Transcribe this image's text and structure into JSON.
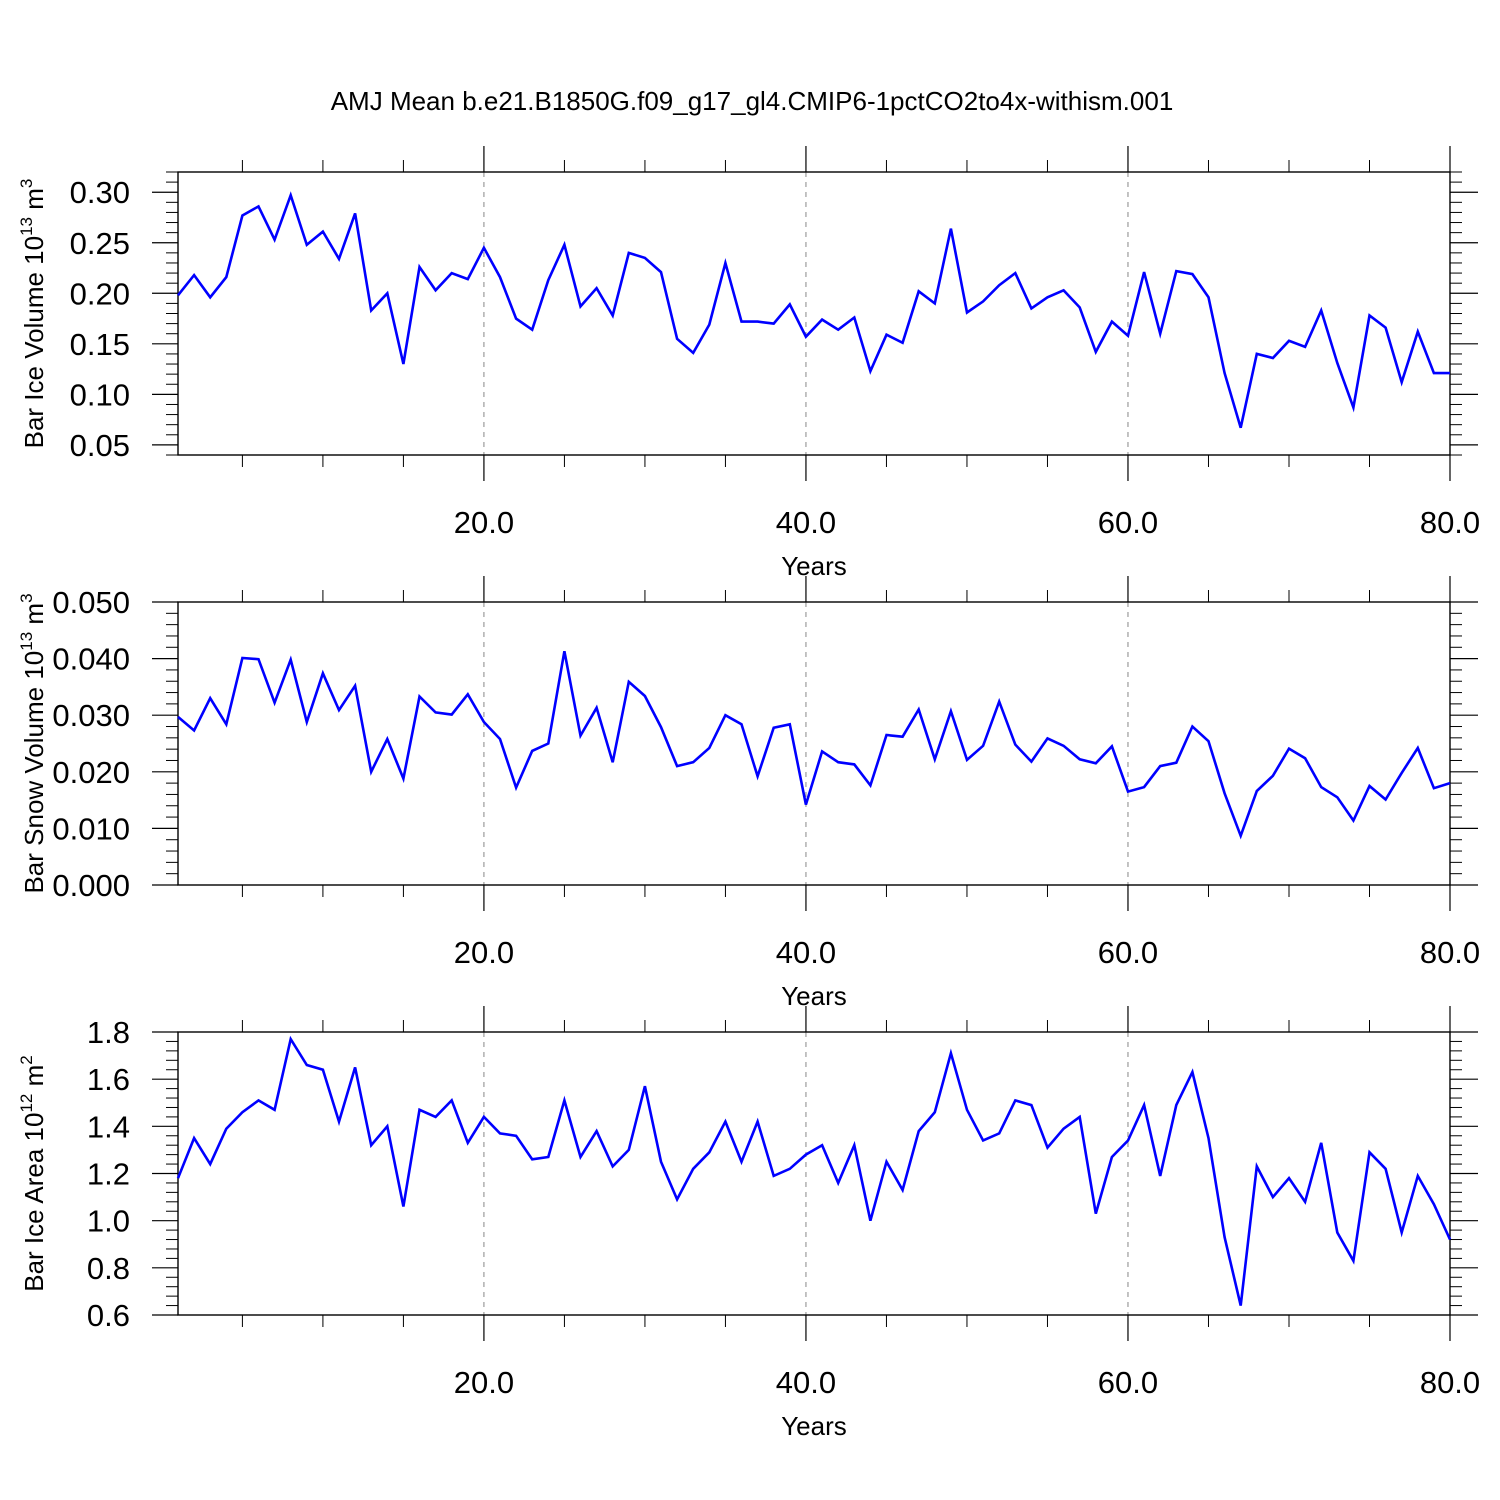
{
  "title": "AMJ Mean b.e21.B1850G.f09_g17_gl4.CMIP6-1pctCO2to4x-withism.001",
  "colors": {
    "line": "#0000ff",
    "axes": "#000000",
    "grid": "#888888",
    "background": "#ffffff"
  },
  "chart_data": [
    {
      "type": "line",
      "xlabel": "Years",
      "ylabel": {
        "main": "Bar Ice Volume 10",
        "sup": "13",
        "unit": " m",
        "unit_sup": "3"
      },
      "xlim": [
        1,
        80
      ],
      "ylim": [
        0.04,
        0.32
      ],
      "xticks": [
        20,
        40,
        60,
        80
      ],
      "xtick_labels": [
        "20.0",
        "40.0",
        "60.0",
        "80.0"
      ],
      "yticks": [
        0.05,
        0.1,
        0.15,
        0.2,
        0.25,
        0.3
      ],
      "ytick_labels": [
        "0.05",
        "0.10",
        "0.15",
        "0.20",
        "0.25",
        "0.30"
      ],
      "x_minor_step": 5,
      "y_minor_step": 0.01,
      "grid": "vertical dashed at major x ticks",
      "series": [
        {
          "values": [
            0.198,
            0.218,
            0.196,
            0.216,
            0.277,
            0.286,
            0.253,
            0.297,
            0.248,
            0.261,
            0.234,
            0.279,
            0.183,
            0.2,
            0.13,
            0.226,
            0.203,
            0.22,
            0.214,
            0.245,
            0.216,
            0.175,
            0.164,
            0.213,
            0.248,
            0.187,
            0.205,
            0.178,
            0.24,
            0.235,
            0.221,
            0.155,
            0.141,
            0.169,
            0.23,
            0.172,
            0.172,
            0.17,
            0.189,
            0.157,
            0.174,
            0.164,
            0.176,
            0.123,
            0.159,
            0.151,
            0.202,
            0.19,
            0.264,
            0.181,
            0.192,
            0.208,
            0.22,
            0.185,
            0.196,
            0.203,
            0.186,
            0.142,
            0.172,
            0.158,
            0.221,
            0.16,
            0.222,
            0.219,
            0.196,
            0.121,
            0.067,
            0.14,
            0.136,
            0.153,
            0.147,
            0.183,
            0.131,
            0.087,
            0.178,
            0.166,
            0.112,
            0.162,
            0.121,
            0.121
          ]
        }
      ]
    },
    {
      "type": "line",
      "xlabel": "Years",
      "ylabel": {
        "main": "Bar Snow Volume 10",
        "sup": "13",
        "unit": " m",
        "unit_sup": "3"
      },
      "xlim": [
        1,
        80
      ],
      "ylim": [
        0.0,
        0.05
      ],
      "xticks": [
        20,
        40,
        60,
        80
      ],
      "xtick_labels": [
        "20.0",
        "40.0",
        "60.0",
        "80.0"
      ],
      "yticks": [
        0.0,
        0.01,
        0.02,
        0.03,
        0.04,
        0.05
      ],
      "ytick_labels": [
        "0.000",
        "0.010",
        "0.020",
        "0.030",
        "0.040",
        "0.050"
      ],
      "x_minor_step": 5,
      "y_minor_step": 0.002,
      "grid": "vertical dashed at major x ticks",
      "series": [
        {
          "values": [
            0.0297,
            0.0273,
            0.033,
            0.0284,
            0.0401,
            0.0399,
            0.0322,
            0.0398,
            0.0288,
            0.0374,
            0.0309,
            0.0352,
            0.02,
            0.0258,
            0.0188,
            0.0333,
            0.0305,
            0.0301,
            0.0337,
            0.0288,
            0.0258,
            0.0172,
            0.0237,
            0.025,
            0.0413,
            0.0264,
            0.0313,
            0.0217,
            0.0359,
            0.0334,
            0.0279,
            0.021,
            0.0217,
            0.0242,
            0.03,
            0.0284,
            0.0192,
            0.0278,
            0.0284,
            0.0142,
            0.0236,
            0.0217,
            0.0213,
            0.0176,
            0.0265,
            0.0262,
            0.031,
            0.0222,
            0.0307,
            0.0221,
            0.0246,
            0.0324,
            0.0248,
            0.0218,
            0.0259,
            0.0246,
            0.0222,
            0.0215,
            0.0245,
            0.0165,
            0.0173,
            0.021,
            0.0216,
            0.028,
            0.0254,
            0.0162,
            0.0087,
            0.0166,
            0.0193,
            0.0241,
            0.0224,
            0.0173,
            0.0155,
            0.0114,
            0.0175,
            0.0151,
            0.0198,
            0.0242,
            0.0171,
            0.018
          ]
        }
      ]
    },
    {
      "type": "line",
      "xlabel": "Years",
      "ylabel": {
        "main": "Bar Ice Area 10",
        "sup": "12",
        "unit": " m",
        "unit_sup": "2"
      },
      "xlim": [
        1,
        80
      ],
      "ylim": [
        0.6,
        1.8
      ],
      "xticks": [
        20,
        40,
        60,
        80
      ],
      "xtick_labels": [
        "20.0",
        "40.0",
        "60.0",
        "80.0"
      ],
      "yticks": [
        0.6,
        0.8,
        1.0,
        1.2,
        1.4,
        1.6,
        1.8
      ],
      "ytick_labels": [
        "0.6",
        "0.8",
        "1.0",
        "1.2",
        "1.4",
        "1.6",
        "1.8"
      ],
      "x_minor_step": 5,
      "y_minor_step": 0.04,
      "grid": "vertical dashed at major x ticks",
      "series": [
        {
          "values": [
            1.18,
            1.35,
            1.24,
            1.39,
            1.46,
            1.51,
            1.47,
            1.77,
            1.66,
            1.64,
            1.42,
            1.65,
            1.32,
            1.4,
            1.06,
            1.47,
            1.44,
            1.51,
            1.33,
            1.44,
            1.37,
            1.36,
            1.26,
            1.27,
            1.51,
            1.27,
            1.38,
            1.23,
            1.3,
            1.57,
            1.25,
            1.09,
            1.22,
            1.29,
            1.42,
            1.25,
            1.42,
            1.19,
            1.22,
            1.28,
            1.32,
            1.16,
            1.32,
            1.0,
            1.25,
            1.13,
            1.38,
            1.46,
            1.71,
            1.47,
            1.34,
            1.37,
            1.51,
            1.49,
            1.31,
            1.39,
            1.44,
            1.03,
            1.27,
            1.34,
            1.49,
            1.19,
            1.49,
            1.63,
            1.35,
            0.93,
            0.64,
            1.23,
            1.1,
            1.18,
            1.08,
            1.33,
            0.95,
            0.83,
            1.29,
            1.22,
            0.95,
            1.19,
            1.07,
            0.92
          ]
        }
      ]
    }
  ]
}
